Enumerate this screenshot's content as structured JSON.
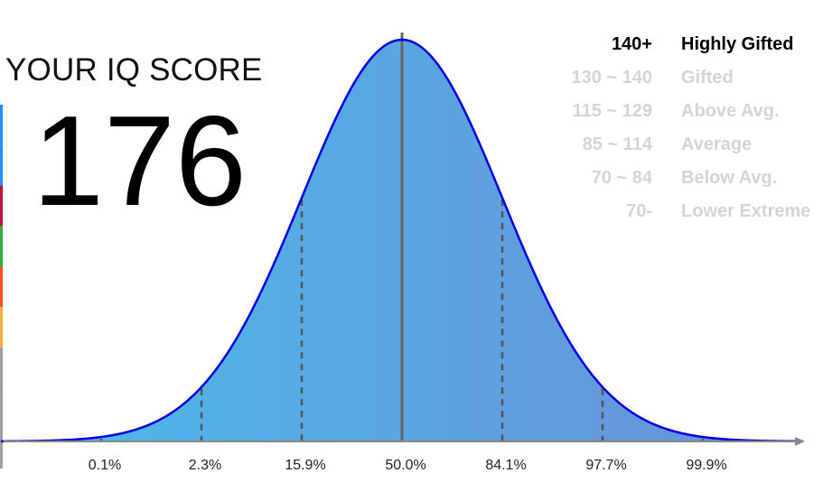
{
  "header": {
    "title": "YOUR IQ SCORE",
    "score": "176"
  },
  "legend": [
    {
      "range": "140+",
      "label": "Highly Gifted",
      "active": true
    },
    {
      "range": "130 ~ 140",
      "label": "Gifted",
      "active": false
    },
    {
      "range": "115 ~ 129",
      "label": "Above Avg.",
      "active": false
    },
    {
      "range": "85 ~ 114",
      "label": "Average",
      "active": false
    },
    {
      "range": "70 ~ 84",
      "label": "Below Avg.",
      "active": false
    },
    {
      "range": "70-",
      "label": "Lower Extreme",
      "active": false
    }
  ],
  "side_bar_colors": [
    "#1e90ff",
    "#1e90ff",
    "#c0103c",
    "#2fae3e",
    "#ff4e1f",
    "#ffb040",
    "#9e9e9e",
    "#9e9e9e",
    "#9e9e9e"
  ],
  "chart_data": {
    "type": "area",
    "x": [
      -4,
      -3,
      -2,
      -1,
      0,
      1,
      2,
      3
    ],
    "tick_labels": [
      "0.1%",
      "2.3%",
      "15.9%",
      "50.0%",
      "84.1%",
      "97.7%",
      "99.9%"
    ],
    "tick_positions": [
      -3,
      -2,
      -1,
      0,
      1,
      2,
      3
    ],
    "distribution": "normal",
    "xlim": [
      -4,
      4
    ],
    "curve_color": "#0000e0",
    "fill_start": "#4bbbec",
    "fill_end": "#6a8fd8",
    "mean_line_color": "#666666",
    "grid": false
  }
}
